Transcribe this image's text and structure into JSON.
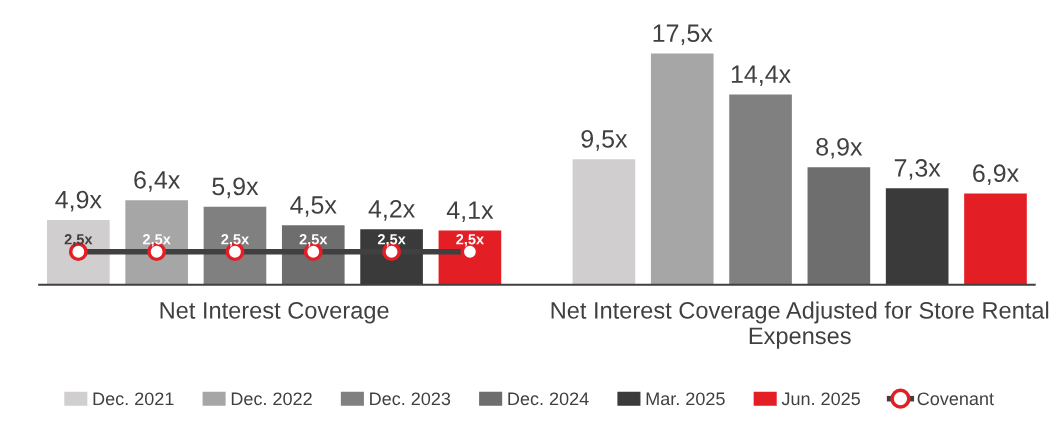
{
  "chart_data": {
    "type": "bar",
    "categories": [
      "Net Interest Coverage",
      "Net Interest Coverage Adjusted for Store Rental Expenses"
    ],
    "tick_labels": "x",
    "grid": false,
    "legend": "bottom",
    "marker": "circle",
    "series": [
      {
        "name": "Dec. 2021",
        "color": "#d0cece",
        "values": [
          4.9,
          9.5
        ],
        "value_labels": [
          "4,9x",
          "9,5x"
        ]
      },
      {
        "name": "Dec. 2022",
        "color": "#a6a6a6",
        "values": [
          6.4,
          17.5
        ],
        "value_labels": [
          "6,4x",
          "17,5x"
        ]
      },
      {
        "name": "Dec. 2023",
        "color": "#808080",
        "values": [
          5.9,
          14.4
        ],
        "value_labels": [
          "5,9x",
          "14,4x"
        ]
      },
      {
        "name": "Dec. 2024",
        "color": "#6e6e6e",
        "values": [
          4.5,
          8.9
        ],
        "value_labels": [
          "4,5x",
          "8,9x"
        ]
      },
      {
        "name": "Mar. 2025",
        "color": "#3a3a3a",
        "values": [
          4.2,
          7.3
        ],
        "value_labels": [
          "4,2x",
          "7,3x"
        ]
      },
      {
        "name": "Jun. 2025",
        "color": "#e31e24",
        "values": [
          4.1,
          6.9
        ],
        "value_labels": [
          "4,1x",
          "6,9x"
        ]
      }
    ],
    "ref_lines": [
      {
        "axis": "y",
        "value": 2.5,
        "label": "Covenant",
        "color": "#404040",
        "line_style": "solid"
      }
    ],
    "annotations": [
      "2,5x",
      "2,5x",
      "2,5x",
      "2,5x",
      "2,5x",
      "2,5x"
    ]
  }
}
